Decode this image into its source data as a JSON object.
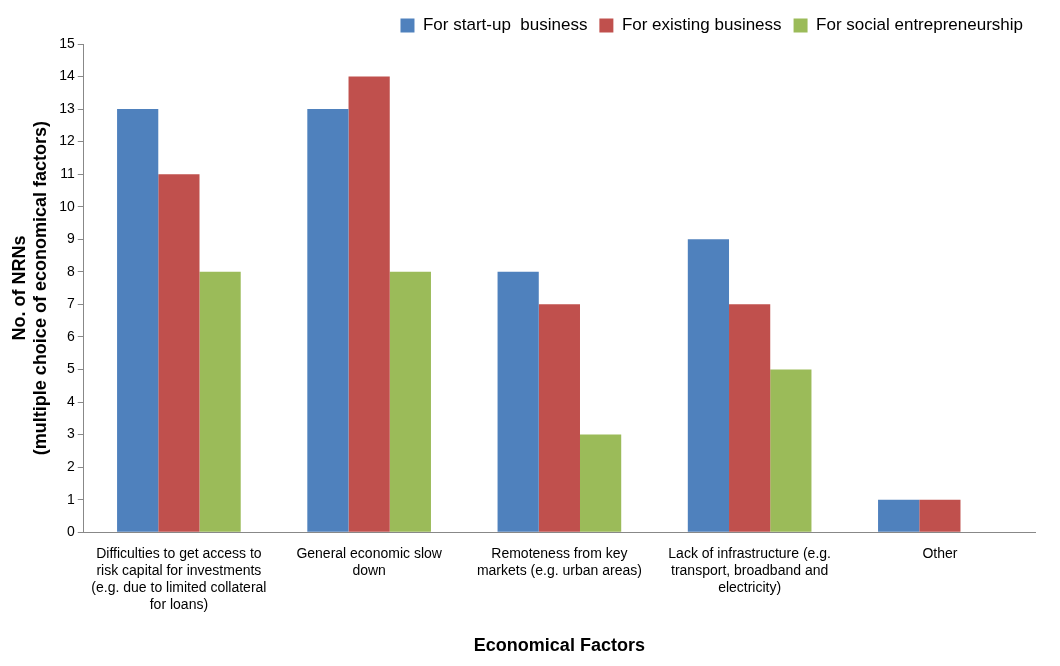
{
  "chart_data": {
    "type": "bar",
    "xlabel": "Economical Factors",
    "ylabel": "No. of NRNs\n(multiple choice of economical factors)",
    "categories": [
      "Difficulties to get access to risk capital for investments (e.g. due to limited collateral for loans)",
      "General economic slow down",
      "Remoteness from key markets (e.g. urban areas)",
      "Lack of infrastructure (e.g. transport, broadband and electricity)",
      "Other"
    ],
    "series": [
      {
        "name": "For start-up  business",
        "color": "#4f81bd",
        "values": [
          13,
          13,
          8,
          9,
          1
        ]
      },
      {
        "name": "For existing business",
        "color": "#c0504d",
        "values": [
          11,
          14,
          7,
          7,
          1
        ]
      },
      {
        "name": "For social entrepreneurship",
        "color": "#9bbb59",
        "values": [
          8,
          8,
          3,
          5,
          0
        ]
      }
    ],
    "ylim": [
      0,
      15
    ],
    "yticks": [
      0,
      1,
      2,
      3,
      4,
      5,
      6,
      7,
      8,
      9,
      10,
      11,
      12,
      13,
      14,
      15
    ],
    "grid": false,
    "legend": "top right"
  }
}
